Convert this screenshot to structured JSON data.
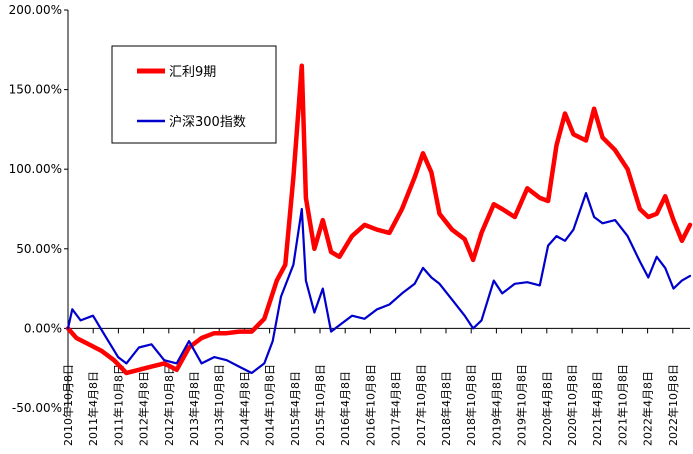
{
  "chart_data": {
    "type": "line",
    "title": "",
    "xlabel": "",
    "ylabel": "",
    "ylim": [
      -50,
      200
    ],
    "xlim": [
      "2010-10-08",
      "2023-03-08"
    ],
    "grid": false,
    "legend_placement": "top-left",
    "y_ticks": [
      -50,
      0,
      50,
      100,
      150,
      200
    ],
    "y_tick_labels": [
      "-50.00%",
      "0.00%",
      "50.00%",
      "100.00%",
      "150.00%",
      "200.00%"
    ],
    "x_tick_labels": [
      "2010年10月8日",
      "2011年4月8日",
      "2011年10月8日",
      "2012年4月8日",
      "2012年10月8日",
      "2013年4月8日",
      "2013年10月8日",
      "2014年4月8日",
      "2014年10月8日",
      "2015年4月8日",
      "2015年10月8日",
      "2016年4月8日",
      "2016年10月8日",
      "2017年4月8日",
      "2017年10月8日",
      "2018年4月8日",
      "2018年10月8日",
      "2019年4月8日",
      "2019年10月8日",
      "2020年4月8日",
      "2020年10月8日",
      "2021年4月8日",
      "2021年10月8日",
      "2022年4月8日",
      "2022年10月8日"
    ],
    "series": [
      {
        "name": "汇利9期",
        "color": "#ff0000",
        "x": [
          "2010-10-08",
          "2010-12-08",
          "2011-03-08",
          "2011-06-08",
          "2011-09-08",
          "2011-12-08",
          "2012-03-08",
          "2012-06-08",
          "2012-09-08",
          "2012-12-08",
          "2013-03-08",
          "2013-06-08",
          "2013-09-08",
          "2013-12-08",
          "2014-03-08",
          "2014-06-08",
          "2014-09-08",
          "2014-12-08",
          "2015-02-08",
          "2015-04-08",
          "2015-06-08",
          "2015-07-08",
          "2015-09-08",
          "2015-11-08",
          "2016-01-08",
          "2016-03-08",
          "2016-06-08",
          "2016-09-08",
          "2016-12-08",
          "2017-03-08",
          "2017-06-08",
          "2017-09-08",
          "2017-11-08",
          "2018-01-08",
          "2018-03-08",
          "2018-06-08",
          "2018-09-08",
          "2018-11-08",
          "2019-01-08",
          "2019-04-08",
          "2019-06-08",
          "2019-09-08",
          "2019-12-08",
          "2020-03-08",
          "2020-05-08",
          "2020-07-08",
          "2020-09-08",
          "2020-11-08",
          "2021-02-08",
          "2021-04-08",
          "2021-06-08",
          "2021-09-08",
          "2021-12-08",
          "2022-03-08",
          "2022-05-08",
          "2022-07-08",
          "2022-09-08",
          "2022-11-08",
          "2023-01-08",
          "2023-03-08"
        ],
        "y": [
          0,
          -6,
          -10,
          -14,
          -20,
          -28,
          -26,
          -24,
          -22,
          -26,
          -12,
          -6,
          -3,
          -3,
          -2,
          -2,
          6,
          30,
          40,
          95,
          165,
          82,
          50,
          68,
          48,
          45,
          58,
          65,
          62,
          60,
          75,
          95,
          110,
          98,
          72,
          62,
          56,
          43,
          60,
          78,
          75,
          70,
          88,
          82,
          80,
          115,
          135,
          122,
          118,
          138,
          120,
          112,
          100,
          75,
          70,
          72,
          83,
          68,
          55,
          65
        ]
      },
      {
        "name": "沪深300指数",
        "color": "#0000cc",
        "x": [
          "2010-10-08",
          "2010-11-08",
          "2011-01-08",
          "2011-04-08",
          "2011-07-08",
          "2011-10-08",
          "2011-12-08",
          "2012-03-08",
          "2012-06-08",
          "2012-09-08",
          "2012-12-08",
          "2013-03-08",
          "2013-06-08",
          "2013-09-08",
          "2013-12-08",
          "2014-03-08",
          "2014-06-08",
          "2014-09-08",
          "2014-11-08",
          "2015-01-08",
          "2015-04-08",
          "2015-06-08",
          "2015-07-08",
          "2015-09-08",
          "2015-11-08",
          "2016-01-08",
          "2016-03-08",
          "2016-06-08",
          "2016-09-08",
          "2016-12-08",
          "2017-03-08",
          "2017-06-08",
          "2017-09-08",
          "2017-11-08",
          "2018-01-08",
          "2018-03-08",
          "2018-06-08",
          "2018-09-08",
          "2018-11-08",
          "2019-01-08",
          "2019-04-08",
          "2019-06-08",
          "2019-09-08",
          "2019-12-08",
          "2020-03-08",
          "2020-05-08",
          "2020-07-08",
          "2020-09-08",
          "2020-11-08",
          "2021-02-08",
          "2021-04-08",
          "2021-06-08",
          "2021-09-08",
          "2021-12-08",
          "2022-03-08",
          "2022-05-08",
          "2022-07-08",
          "2022-09-08",
          "2022-11-08",
          "2023-01-08",
          "2023-03-08"
        ],
        "y": [
          0,
          12,
          5,
          8,
          -5,
          -18,
          -22,
          -12,
          -10,
          -20,
          -22,
          -8,
          -22,
          -18,
          -20,
          -24,
          -28,
          -22,
          -8,
          20,
          40,
          75,
          30,
          10,
          25,
          -2,
          2,
          8,
          6,
          12,
          15,
          22,
          28,
          38,
          32,
          28,
          18,
          8,
          0,
          5,
          30,
          22,
          28,
          29,
          27,
          52,
          58,
          55,
          62,
          85,
          70,
          66,
          68,
          58,
          42,
          32,
          45,
          38,
          25,
          30,
          33
        ]
      }
    ]
  }
}
